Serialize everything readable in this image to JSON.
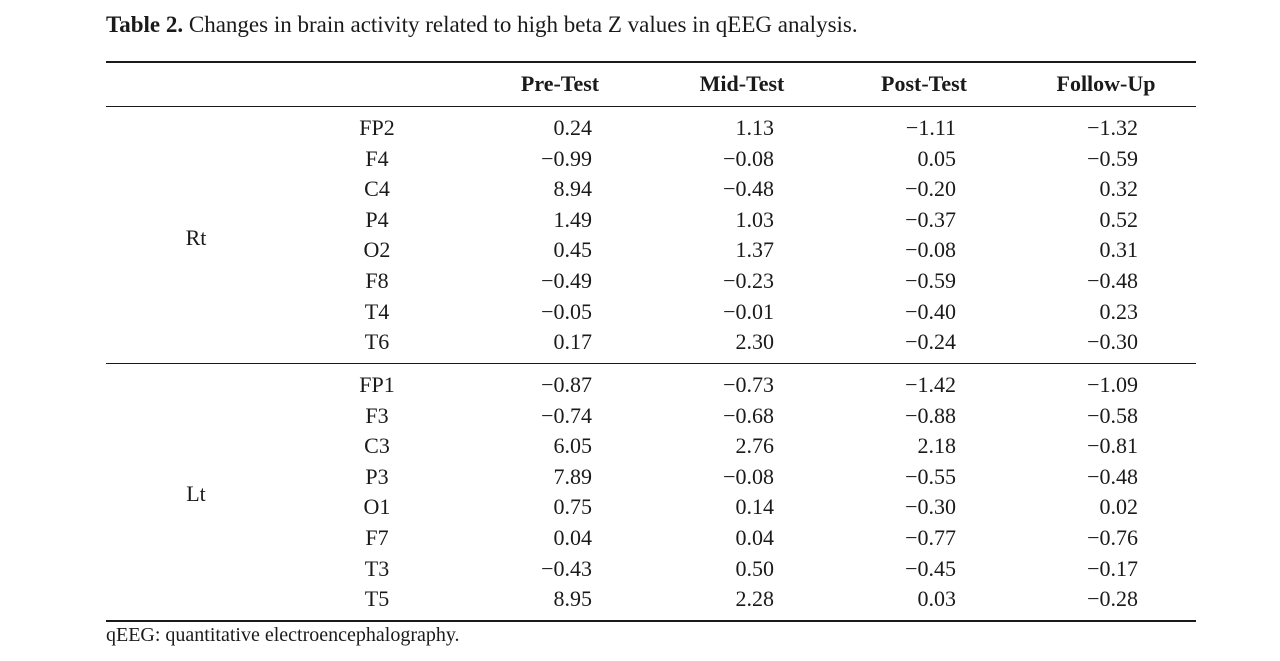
{
  "caption": {
    "label": "Table 2.",
    "text": "Changes in brain activity related to high beta Z values in qEEG analysis."
  },
  "columns": [
    "Pre-Test",
    "Mid-Test",
    "Post-Test",
    "Follow-Up"
  ],
  "groups": [
    {
      "label": "Rt",
      "rows": [
        {
          "electrode": "FP2",
          "values": [
            "0.24",
            "1.13",
            "−1.11",
            "−1.32"
          ]
        },
        {
          "electrode": "F4",
          "values": [
            "−0.99",
            "−0.08",
            "0.05",
            "−0.59"
          ]
        },
        {
          "electrode": "C4",
          "values": [
            "8.94",
            "−0.48",
            "−0.20",
            "0.32"
          ]
        },
        {
          "electrode": "P4",
          "values": [
            "1.49",
            "1.03",
            "−0.37",
            "0.52"
          ]
        },
        {
          "electrode": "O2",
          "values": [
            "0.45",
            "1.37",
            "−0.08",
            "0.31"
          ]
        },
        {
          "electrode": "F8",
          "values": [
            "−0.49",
            "−0.23",
            "−0.59",
            "−0.48"
          ]
        },
        {
          "electrode": "T4",
          "values": [
            "−0.05",
            "−0.01",
            "−0.40",
            "0.23"
          ]
        },
        {
          "electrode": "T6",
          "values": [
            "0.17",
            "2.30",
            "−0.24",
            "−0.30"
          ]
        }
      ]
    },
    {
      "label": "Lt",
      "rows": [
        {
          "electrode": "FP1",
          "values": [
            "−0.87",
            "−0.73",
            "−1.42",
            "−1.09"
          ]
        },
        {
          "electrode": "F3",
          "values": [
            "−0.74",
            "−0.68",
            "−0.88",
            "−0.58"
          ]
        },
        {
          "electrode": "C3",
          "values": [
            "6.05",
            "2.76",
            "2.18",
            "−0.81"
          ]
        },
        {
          "electrode": "P3",
          "values": [
            "7.89",
            "−0.08",
            "−0.55",
            "−0.48"
          ]
        },
        {
          "electrode": "O1",
          "values": [
            "0.75",
            "0.14",
            "−0.30",
            "0.02"
          ]
        },
        {
          "electrode": "F7",
          "values": [
            "0.04",
            "0.04",
            "−0.77",
            "−0.76"
          ]
        },
        {
          "electrode": "T3",
          "values": [
            "−0.43",
            "0.50",
            "−0.45",
            "−0.17"
          ]
        },
        {
          "electrode": "T5",
          "values": [
            "8.95",
            "2.28",
            "0.03",
            "−0.28"
          ]
        }
      ]
    }
  ],
  "footnote": "qEEG: quantitative electroencephalography."
}
